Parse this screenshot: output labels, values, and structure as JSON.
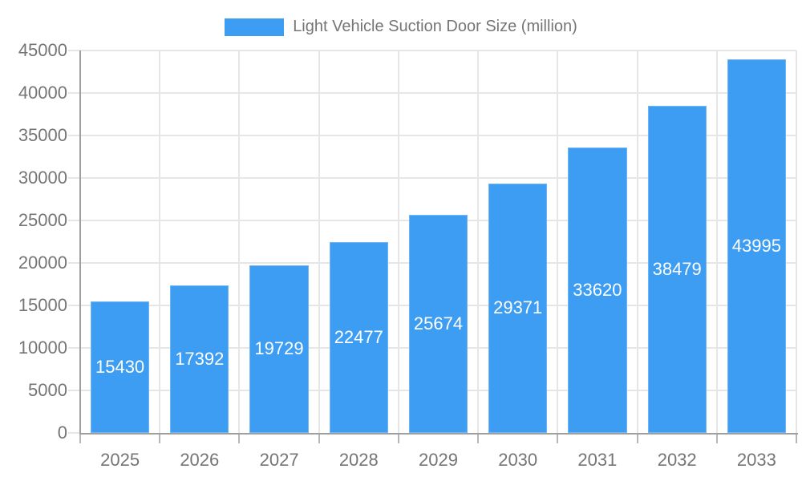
{
  "legend": {
    "label": "Light Vehicle Suction Door Size (million)",
    "swatch_color": "#3D9DF3"
  },
  "chart_data": {
    "type": "bar",
    "title": "",
    "xlabel": "",
    "ylabel": "",
    "categories": [
      "2025",
      "2026",
      "2027",
      "2028",
      "2029",
      "2030",
      "2031",
      "2032",
      "2033"
    ],
    "series": [
      {
        "name": "Light Vehicle Suction Door Size (million)",
        "values": [
          15430,
          17392,
          19729,
          22477,
          25674,
          29371,
          33620,
          38479,
          43995
        ]
      }
    ],
    "value_labels_shown": true,
    "ylim": [
      0,
      45000
    ],
    "ytick_step": 5000,
    "yticks": [
      0,
      5000,
      10000,
      15000,
      20000,
      25000,
      30000,
      35000,
      40000,
      45000
    ],
    "grid": true,
    "legend_position": "top",
    "colors": {
      "bar_fill": "#3D9DF3",
      "bar_border": "#72b5f4",
      "value_label": "#ffffff",
      "gridline": "#e6e6e6",
      "axis_line": "#9e9e9e",
      "tick_label": "#757575",
      "background": "#ffffff"
    }
  }
}
